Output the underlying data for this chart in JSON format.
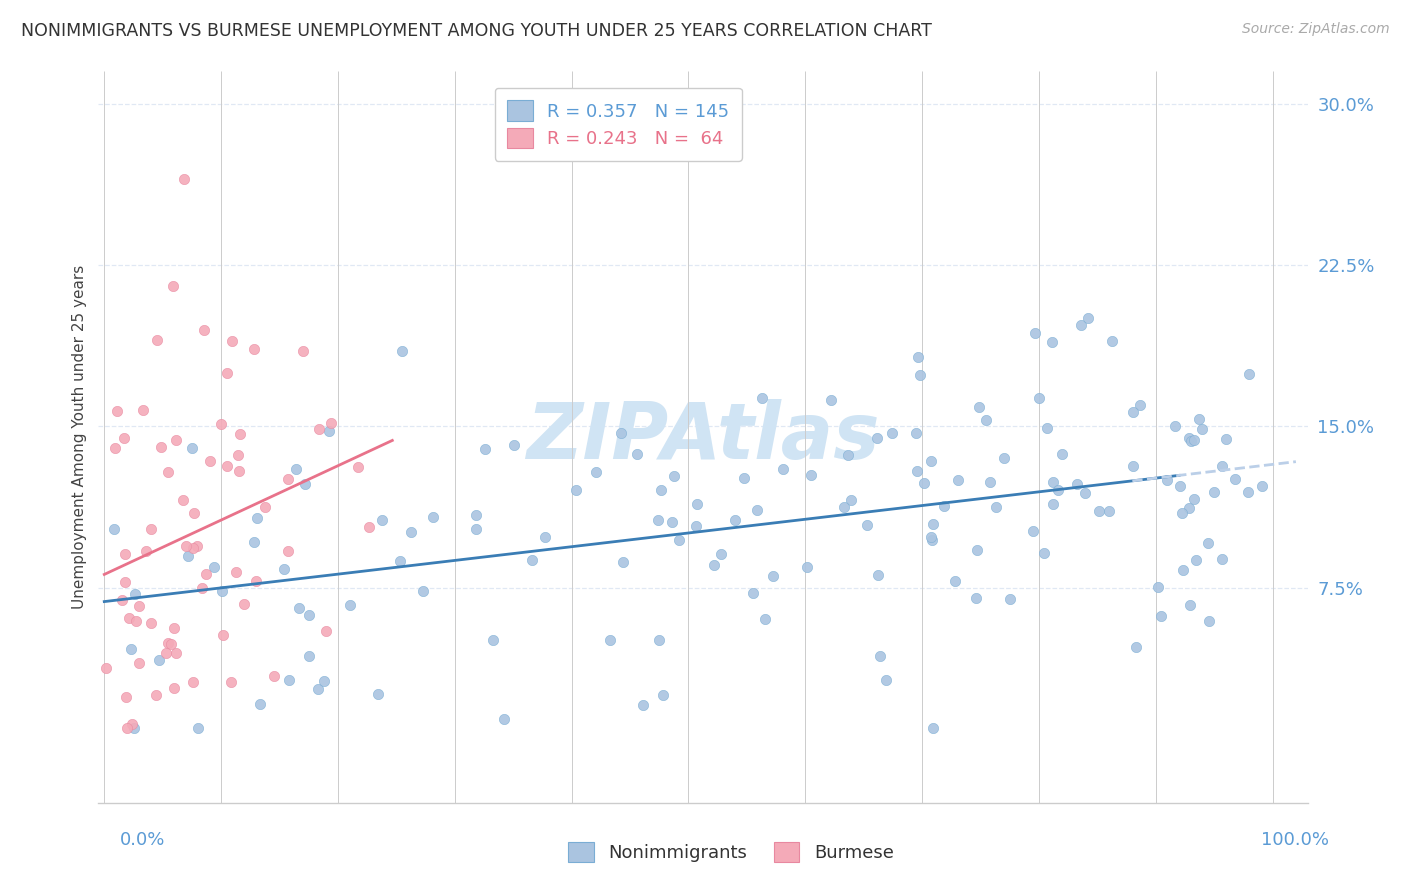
{
  "title": "NONIMMIGRANTS VS BURMESE UNEMPLOYMENT AMONG YOUTH UNDER 25 YEARS CORRELATION CHART",
  "source": "Source: ZipAtlas.com",
  "ylabel": "Unemployment Among Youth under 25 years",
  "ytick_vals": [
    0.0,
    0.075,
    0.15,
    0.225,
    0.3
  ],
  "ytick_labels": [
    "",
    "7.5%",
    "15.0%",
    "22.5%",
    "30.0%"
  ],
  "title_color": "#333333",
  "source_color": "#aaaaaa",
  "nonimmigrant_color": "#aac4e0",
  "nonimmigrant_edge": "#7aadd4",
  "burmese_color": "#f4aab8",
  "burmese_edge": "#e888a0",
  "nonimmigrant_line_color": "#3a7db5",
  "nonimmigrant_dash_color": "#bbcfe8",
  "burmese_line_color": "#e8728a",
  "watermark_color": "#d0e4f4",
  "tick_label_color": "#5b9bd5",
  "grid_color": "#e0e8f4",
  "legend_r1": "R = 0.357",
  "legend_n1": "N = 145",
  "legend_r2": "R = 0.243",
  "legend_n2": "N =  64",
  "legend_text_color1": "#5b9bd5",
  "legend_text_color2": "#e8728a"
}
